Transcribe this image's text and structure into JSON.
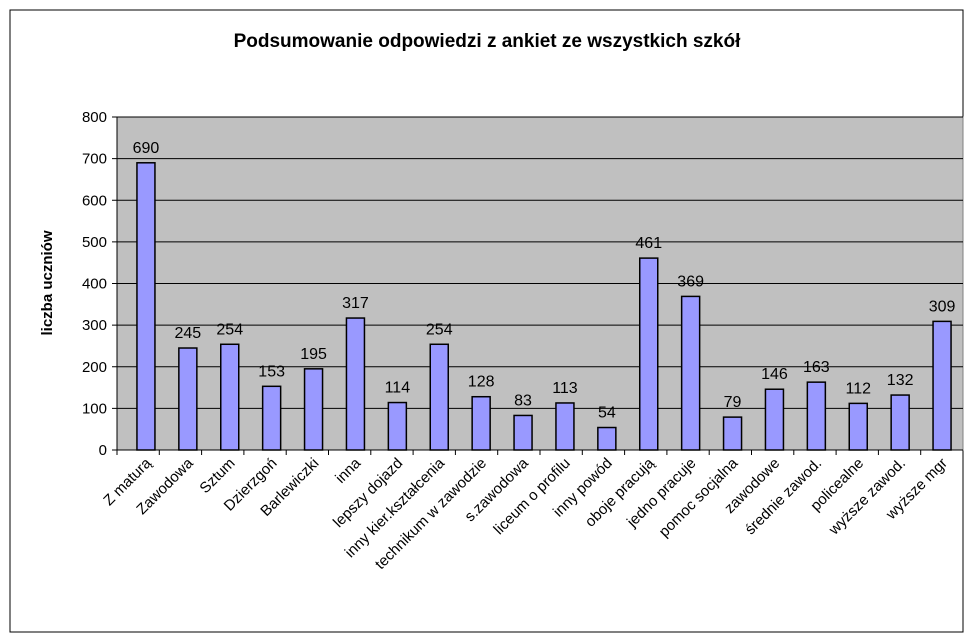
{
  "chart_data": {
    "type": "bar",
    "title": "Podsumowanie odpowiedzi z ankiet ze wszystkich szkół",
    "ylabel": "liczba uczniów",
    "categories": [
      "Z maturą",
      "Zawodowa",
      "Sztum",
      "Dzierzgoń",
      "Barlewiczki",
      "inna",
      "lepszy dojazd",
      "inny kier.kształcenia",
      "technikum w zawodzie",
      "s.zawodowa",
      "liceum o profilu",
      "inny powód",
      "oboje pracują",
      "jedno pracuje",
      "pomoc socjalna",
      "zawodowe",
      "średnie zawod.",
      "policealne",
      "wyższe zawod.",
      "wyższe mgr"
    ],
    "values": [
      690,
      245,
      254,
      153,
      195,
      317,
      114,
      254,
      128,
      83,
      113,
      54,
      461,
      369,
      79,
      146,
      163,
      112,
      132,
      309
    ],
    "color": "#9999ff",
    "ylim": [
      0,
      800
    ],
    "yticks": [
      0,
      100,
      200,
      300,
      400,
      500,
      600,
      700,
      800
    ],
    "grid": true
  }
}
